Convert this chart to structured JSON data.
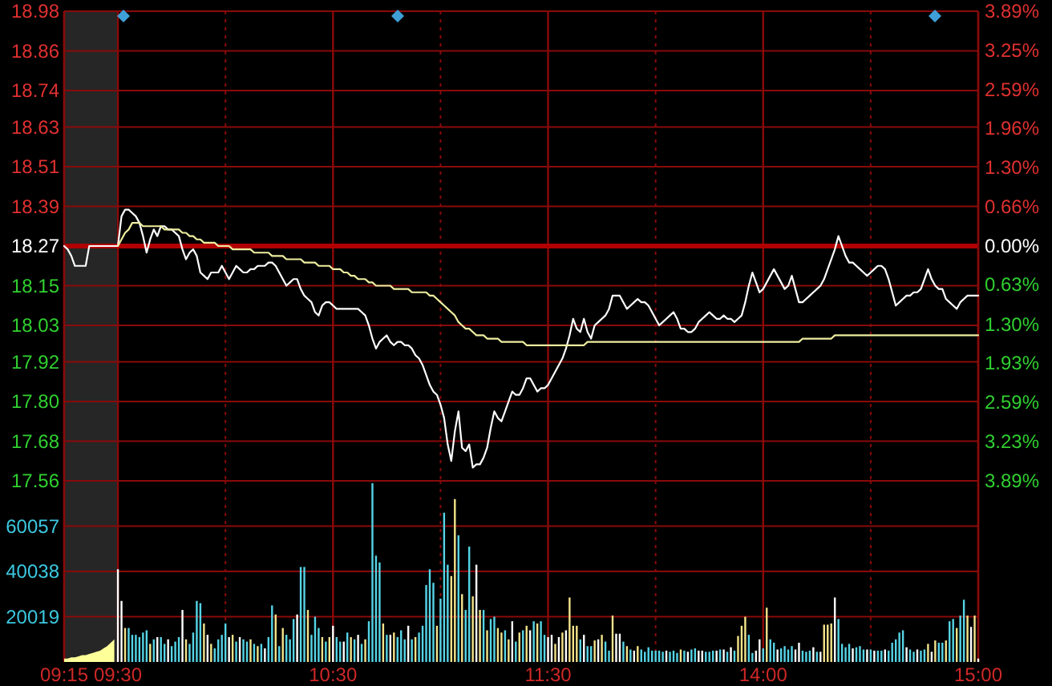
{
  "chart_data": [
    {
      "type": "line",
      "tick_labels": "y",
      "grid": true,
      "categories": [
        "09:15",
        null,
        null,
        null,
        null,
        null,
        null,
        null,
        null,
        null,
        null,
        null,
        null,
        null,
        null,
        "09:30",
        null,
        null,
        null,
        null,
        null,
        null,
        null,
        null,
        null,
        null,
        null,
        null,
        null,
        null,
        null,
        null,
        null,
        null,
        null,
        null,
        null,
        null,
        null,
        null,
        null,
        null,
        null,
        null,
        null,
        null,
        null,
        null,
        null,
        null,
        null,
        null,
        null,
        null,
        null,
        null,
        null,
        null,
        null,
        null,
        null,
        null,
        null,
        null,
        null,
        null,
        null,
        null,
        null,
        null,
        null,
        null,
        null,
        null,
        null,
        "10:30",
        null,
        null,
        null,
        null,
        null,
        null,
        null,
        null,
        null,
        null,
        null,
        null,
        null,
        null,
        null,
        null,
        null,
        null,
        null,
        null,
        null,
        null,
        null,
        null,
        null,
        null,
        null,
        null,
        null,
        null,
        null,
        null,
        null,
        null,
        null,
        null,
        null,
        null,
        null,
        null,
        null,
        null,
        null,
        null,
        null,
        null,
        null,
        null,
        null,
        null,
        null,
        null,
        null,
        null,
        null,
        null,
        null,
        null,
        null,
        "11:30",
        null,
        null,
        null,
        null,
        null,
        null,
        null,
        null,
        null,
        null,
        null,
        null,
        null,
        null,
        null,
        null,
        null,
        null,
        null,
        null,
        null,
        null,
        null,
        null,
        null,
        null,
        null,
        null,
        null,
        null,
        null,
        null,
        null,
        null,
        null,
        null,
        null,
        null,
        null,
        null,
        null,
        null,
        null,
        null,
        null,
        null,
        null,
        null,
        null,
        null,
        null,
        null,
        null,
        null,
        null,
        null,
        null,
        null,
        null,
        "14:00",
        null,
        null,
        null,
        null,
        null,
        null,
        null,
        null,
        null,
        null,
        null,
        null,
        null,
        null,
        null,
        null,
        null,
        null,
        null,
        null,
        null,
        null,
        null,
        null,
        null,
        null,
        null,
        null,
        null,
        null,
        null,
        null,
        null,
        null,
        null,
        null,
        null,
        null,
        null,
        null,
        null,
        null,
        null,
        null,
        null,
        null,
        null,
        null,
        null,
        null,
        null,
        null,
        null,
        null,
        null,
        null,
        null,
        null,
        null,
        "15:00"
      ],
      "ylim": [
        17.56,
        18.98
      ],
      "yticks": [
        18.98,
        18.86,
        18.74,
        18.63,
        18.51,
        18.39,
        18.27,
        18.15,
        18.03,
        17.92,
        {
          "value": 17.8,
          "label": "17.80"
        },
        17.68,
        17.56
      ],
      "y2lim": [
        -3.89,
        3.89
      ],
      "y2ticks": [
        {
          "value": 3.89,
          "label": "3.89%"
        },
        {
          "value": 3.25,
          "label": "3.25%"
        },
        {
          "value": 2.59,
          "label": "2.59%"
        },
        {
          "value": 1.96,
          "label": "1.96%"
        },
        {
          "value": 1.3,
          "label": "1.30%"
        },
        {
          "value": 0.66,
          "label": "0.66%"
        },
        {
          "value": 0,
          "label": "0.00%"
        },
        {
          "value": -0.63,
          "label": "0.63%"
        },
        {
          "value": -1.3,
          "label": "1.30%"
        },
        {
          "value": -1.93,
          "label": "1.93%"
        },
        {
          "value": -2.59,
          "label": "2.59%"
        },
        {
          "value": -3.23,
          "label": "3.23%"
        },
        {
          "value": -3.89,
          "label": "3.89%"
        }
      ],
      "bands": [
        {
          "axis": "x",
          "from": "09:15",
          "to": "09:30",
          "color": "#262626"
        }
      ],
      "ref_lines": [
        {
          "axis": "y",
          "value": 18.27,
          "color": "#b00000"
        }
      ],
      "series": [
        {
          "color": "#ffffff",
          "values": [
            18.27,
            18.26,
            18.24,
            18.21,
            18.21,
            18.21,
            18.21,
            18.27,
            18.27,
            18.27,
            18.27,
            18.27,
            18.27,
            18.27,
            18.27,
            18.27,
            18.36,
            18.38,
            18.38,
            18.37,
            18.36,
            18.34,
            18.3,
            18.25,
            18.29,
            18.32,
            18.3,
            18.33,
            18.33,
            18.32,
            18.32,
            18.31,
            18.3,
            18.26,
            18.23,
            18.25,
            18.26,
            18.24,
            18.19,
            18.18,
            18.17,
            18.19,
            18.19,
            18.19,
            18.21,
            18.19,
            18.17,
            18.19,
            18.21,
            18.2,
            18.19,
            18.19,
            18.2,
            18.2,
            18.21,
            18.21,
            18.21,
            18.22,
            18.22,
            18.21,
            18.19,
            18.17,
            18.15,
            18.16,
            18.17,
            18.17,
            18.14,
            18.12,
            18.11,
            18.1,
            18.07,
            18.06,
            18.09,
            18.1,
            18.1,
            18.09,
            18.08,
            18.08,
            18.08,
            18.08,
            18.08,
            18.08,
            18.08,
            18.07,
            18.06,
            18.03,
            17.99,
            17.96,
            17.98,
            17.99,
            18.0,
            17.98,
            17.97,
            17.98,
            17.98,
            17.97,
            17.97,
            17.96,
            17.94,
            17.93,
            17.91,
            17.88,
            17.85,
            17.83,
            17.82,
            17.79,
            17.75,
            17.67,
            17.62,
            17.71,
            17.77,
            17.66,
            17.65,
            17.67,
            17.6,
            17.61,
            17.61,
            17.63,
            17.66,
            17.72,
            17.77,
            17.75,
            17.74,
            17.77,
            17.8,
            17.83,
            17.82,
            17.82,
            17.84,
            17.87,
            17.87,
            17.85,
            17.83,
            17.84,
            17.84,
            17.85,
            17.87,
            17.89,
            17.91,
            17.93,
            17.96,
            18.0,
            18.05,
            18.02,
            18.01,
            18.05,
            18.01,
            17.99,
            18.03,
            18.04,
            18.05,
            18.06,
            18.08,
            18.12,
            18.12,
            18.12,
            18.1,
            18.08,
            18.09,
            18.1,
            18.11,
            18.1,
            18.1,
            18.09,
            18.07,
            18.05,
            18.03,
            18.04,
            18.05,
            18.06,
            18.07,
            18.05,
            18.02,
            18.02,
            18.01,
            18.01,
            18.02,
            18.04,
            18.05,
            18.06,
            18.07,
            18.06,
            18.05,
            18.05,
            18.06,
            18.05,
            18.05,
            18.04,
            18.05,
            18.06,
            18.1,
            18.15,
            18.19,
            18.16,
            18.13,
            18.14,
            18.16,
            18.18,
            18.2,
            18.18,
            18.16,
            18.14,
            18.15,
            18.18,
            18.14,
            18.1,
            18.1,
            18.11,
            18.12,
            18.13,
            18.14,
            18.15,
            18.17,
            18.2,
            18.23,
            18.26,
            18.3,
            18.27,
            18.24,
            18.22,
            18.22,
            18.21,
            18.2,
            18.19,
            18.18,
            18.19,
            18.2,
            18.21,
            18.21,
            18.2,
            18.17,
            18.13,
            18.09,
            18.1,
            18.11,
            18.12,
            18.12,
            18.13,
            18.13,
            18.14,
            18.17,
            18.2,
            18.17,
            18.15,
            18.14,
            18.14,
            18.11,
            18.1,
            18.09,
            18.08,
            18.1,
            18.11,
            18.12,
            18.12,
            18.12,
            18.12
          ]
        },
        {
          "color": "#eeeea0",
          "values": [
            null,
            null,
            null,
            null,
            null,
            null,
            null,
            null,
            null,
            null,
            null,
            null,
            null,
            null,
            null,
            18.27,
            18.29,
            18.31,
            18.32,
            18.34,
            18.34,
            18.34,
            18.33,
            18.33,
            18.33,
            18.33,
            18.33,
            18.33,
            18.32,
            18.32,
            18.32,
            18.32,
            18.32,
            18.31,
            18.31,
            18.3,
            18.3,
            18.29,
            18.29,
            18.28,
            18.28,
            18.28,
            18.28,
            18.27,
            18.27,
            18.27,
            18.27,
            18.26,
            18.26,
            18.26,
            18.26,
            18.26,
            18.26,
            18.25,
            18.25,
            18.25,
            18.25,
            18.25,
            18.24,
            18.24,
            18.24,
            18.24,
            18.23,
            18.23,
            18.23,
            18.23,
            18.23,
            18.22,
            18.22,
            18.22,
            18.22,
            18.21,
            18.21,
            18.21,
            18.21,
            18.2,
            18.2,
            18.2,
            18.19,
            18.19,
            18.18,
            18.18,
            18.17,
            18.17,
            18.17,
            18.16,
            18.16,
            18.15,
            18.15,
            18.15,
            18.15,
            18.15,
            18.14,
            18.14,
            18.14,
            18.14,
            18.14,
            18.13,
            18.13,
            18.13,
            18.13,
            18.13,
            18.12,
            18.12,
            18.11,
            18.1,
            18.09,
            18.08,
            18.07,
            18.06,
            18.04,
            18.03,
            18.02,
            18.02,
            18.01,
            18.0,
            18.0,
            18.0,
            17.99,
            17.99,
            17.99,
            17.99,
            17.98,
            17.98,
            17.98,
            17.98,
            17.98,
            17.98,
            17.98,
            17.97,
            17.97,
            17.97,
            17.97,
            17.97,
            17.97,
            17.97,
            17.97,
            17.97,
            17.97,
            17.97,
            17.97,
            17.97,
            17.97,
            17.97,
            17.97,
            17.97,
            17.98,
            17.98,
            17.98,
            17.98,
            17.98,
            17.98,
            17.98,
            17.98,
            17.98,
            17.98,
            17.98,
            17.98,
            17.98,
            17.98,
            17.98,
            17.98,
            17.98,
            17.98,
            17.98,
            17.98,
            17.98,
            17.98,
            17.98,
            17.98,
            17.98,
            17.98,
            17.98,
            17.98,
            17.98,
            17.98,
            17.98,
            17.98,
            17.98,
            17.98,
            17.98,
            17.98,
            17.98,
            17.98,
            17.98,
            17.98,
            17.98,
            17.98,
            17.98,
            17.98,
            17.98,
            17.98,
            17.98,
            17.98,
            17.98,
            17.98,
            17.98,
            17.98,
            17.98,
            17.98,
            17.98,
            17.98,
            17.98,
            17.98,
            17.98,
            17.98,
            17.99,
            17.99,
            17.99,
            17.99,
            17.99,
            17.99,
            17.99,
            17.99,
            17.99,
            18.0,
            18.0,
            18.0,
            18.0,
            18.0,
            18.0,
            18.0,
            18.0,
            18.0,
            18.0,
            18.0,
            18.0,
            18.0,
            18.0,
            18.0,
            18.0,
            18.0,
            18.0,
            18.0,
            18.0,
            18.0,
            18.0,
            18.0,
            18.0,
            18.0,
            18.0,
            18.0,
            18.0,
            18.0,
            18.0,
            18.0,
            18.0,
            18.0,
            18.0,
            18.0,
            18.0,
            18.0,
            18.0,
            18.0,
            18.0,
            18.0
          ]
        }
      ]
    },
    {
      "type": "bar",
      "grid": true,
      "categories": [
        "09:15",
        null,
        null,
        null,
        null,
        null,
        null,
        null,
        null,
        null,
        null,
        null,
        null,
        null,
        null,
        "09:30",
        null,
        null,
        null,
        null,
        null,
        null,
        null,
        null,
        null,
        null,
        null,
        null,
        null,
        null,
        null,
        null,
        null,
        null,
        null,
        null,
        null,
        null,
        null,
        null,
        null,
        null,
        null,
        null,
        null,
        null,
        null,
        null,
        null,
        null,
        null,
        null,
        null,
        null,
        null,
        null,
        null,
        null,
        null,
        null,
        null,
        null,
        null,
        null,
        null,
        null,
        null,
        null,
        null,
        null,
        null,
        null,
        null,
        null,
        null,
        "10:30",
        null,
        null,
        null,
        null,
        null,
        null,
        null,
        null,
        null,
        null,
        null,
        null,
        null,
        null,
        null,
        null,
        null,
        null,
        null,
        null,
        null,
        null,
        null,
        null,
        null,
        null,
        null,
        null,
        null,
        null,
        null,
        null,
        null,
        null,
        null,
        null,
        null,
        null,
        null,
        null,
        null,
        null,
        null,
        null,
        null,
        null,
        null,
        null,
        null,
        null,
        null,
        null,
        null,
        null,
        null,
        null,
        null,
        null,
        null,
        "11:30",
        null,
        null,
        null,
        null,
        null,
        null,
        null,
        null,
        null,
        null,
        null,
        null,
        null,
        null,
        null,
        null,
        null,
        null,
        null,
        null,
        null,
        null,
        null,
        null,
        null,
        null,
        null,
        null,
        null,
        null,
        null,
        null,
        null,
        null,
        null,
        null,
        null,
        null,
        null,
        null,
        null,
        null,
        null,
        null,
        null,
        null,
        null,
        null,
        null,
        null,
        null,
        null,
        null,
        null,
        null,
        null,
        null,
        null,
        null,
        "14:00",
        null,
        null,
        null,
        null,
        null,
        null,
        null,
        null,
        null,
        null,
        null,
        null,
        null,
        null,
        null,
        null,
        null,
        null,
        null,
        null,
        null,
        null,
        null,
        null,
        null,
        null,
        null,
        null,
        null,
        null,
        null,
        null,
        null,
        null,
        null,
        null,
        null,
        null,
        null,
        null,
        null,
        null,
        null,
        null,
        null,
        null,
        null,
        null,
        null,
        null,
        null,
        null,
        null,
        null,
        null,
        null,
        null,
        null,
        null,
        "15:00"
      ],
      "ylim": [
        0,
        80076
      ],
      "yticks": [
        20019,
        40038,
        60057,
        {
          "value": 80076,
          "label": null
        }
      ],
      "bands": [
        {
          "axis": "x",
          "from": "09:15",
          "to": "09:30",
          "color": "#262626"
        }
      ],
      "series": [
        {
          "type": "area",
          "color": "#ffff99",
          "values": [
            1500,
            1500,
            2000,
            2000,
            2500,
            3000,
            3000,
            3500,
            4000,
            4500,
            5000,
            6000,
            7000,
            8500,
            10000,
            null,
            null,
            null,
            null,
            null,
            null,
            null,
            null,
            null,
            null,
            null,
            null,
            null,
            null,
            null,
            null,
            null,
            null,
            null,
            null,
            null,
            null,
            null,
            null,
            null,
            null,
            null,
            null,
            null,
            null,
            null,
            null,
            null,
            null,
            null,
            null,
            null,
            null,
            null,
            null,
            null,
            null,
            null,
            null,
            null,
            null,
            null,
            null,
            null,
            null,
            null,
            null,
            null,
            null,
            null,
            null,
            null,
            null,
            null,
            null,
            null,
            null,
            null,
            null,
            null,
            null,
            null,
            null,
            null,
            null,
            null,
            null,
            null,
            null,
            null,
            null,
            null,
            null,
            null,
            null,
            null,
            null,
            null,
            null,
            null,
            null,
            null,
            null,
            null,
            null,
            null,
            null,
            null,
            null,
            null,
            null,
            null,
            null,
            null,
            null,
            null,
            null,
            null,
            null,
            null,
            null,
            null,
            null,
            null,
            null,
            null,
            null,
            null,
            null,
            null,
            null,
            null,
            null,
            null,
            null,
            null,
            null,
            null,
            null,
            null,
            null,
            null,
            null,
            null,
            null,
            null,
            null,
            null,
            null,
            null,
            null,
            null,
            null,
            null,
            null,
            null,
            null,
            null,
            null,
            null,
            null,
            null,
            null,
            null,
            null,
            null,
            null,
            null,
            null,
            null,
            null,
            null,
            null,
            null,
            null,
            null,
            null,
            null,
            null,
            null,
            null,
            null,
            null,
            null,
            null,
            null,
            null,
            null,
            null,
            null,
            null,
            null,
            null,
            null,
            null,
            null,
            null,
            null,
            null,
            null,
            null,
            null,
            null,
            null,
            null,
            null,
            null,
            null,
            null,
            null,
            null,
            null,
            null,
            null,
            null,
            null,
            null,
            null,
            null,
            null,
            null,
            null,
            null,
            null,
            null,
            null,
            null,
            null,
            null,
            null,
            null,
            null,
            null,
            null,
            null,
            null,
            null,
            null,
            null,
            null,
            null,
            null,
            null,
            null,
            null,
            null,
            null,
            null,
            null,
            null,
            null,
            null,
            null,
            null,
            null,
            null
          ]
        },
        {
          "values": [
            null,
            null,
            null,
            null,
            null,
            null,
            null,
            null,
            null,
            null,
            null,
            null,
            null,
            null,
            null,
            41000,
            27000,
            15000,
            15000,
            12000,
            12000,
            11000,
            13000,
            14000,
            8000,
            10000,
            11000,
            11000,
            8000,
            10000,
            7000,
            9000,
            11000,
            23000,
            10000,
            8000,
            13000,
            27000,
            26000,
            17000,
            12000,
            8000,
            6000,
            10000,
            12000,
            17000,
            11000,
            12000,
            9000,
            11000,
            10000,
            9000,
            10000,
            8000,
            7000,
            8000,
            6000,
            11000,
            25000,
            21000,
            7000,
            15000,
            12000,
            10000,
            19000,
            21000,
            42000,
            42000,
            23000,
            12000,
            20000,
            15000,
            11000,
            9000,
            11000,
            16000,
            11000,
            9000,
            9000,
            13000,
            11000,
            10000,
            12000,
            8000,
            10000,
            18000,
            79000,
            47000,
            44000,
            17000,
            12000,
            12000,
            13000,
            11000,
            14000,
            10000,
            16000,
            10000,
            11000,
            13000,
            16000,
            34000,
            41000,
            35000,
            16000,
            28000,
            66000,
            43000,
            38000,
            72000,
            56000,
            30000,
            23000,
            51000,
            29000,
            43000,
            23000,
            23000,
            14000,
            19000,
            20000,
            15000,
            13000,
            14000,
            10000,
            18000,
            9000,
            13000,
            14000,
            16000,
            14000,
            18000,
            17000,
            18000,
            12000,
            11000,
            12000,
            8000,
            11000,
            13000,
            14000,
            28500,
            16000,
            16000,
            10000,
            12000,
            7000,
            7000,
            9500,
            10000,
            12000,
            9000,
            5000,
            20500,
            12500,
            12500,
            9000,
            7000,
            5500,
            5000,
            7000,
            5500,
            4500,
            6500,
            5000,
            5000,
            5000,
            4500,
            5000,
            4500,
            5000,
            4000,
            5500,
            5000,
            4500,
            5500,
            6000,
            5000,
            5000,
            4500,
            4500,
            5000,
            5000,
            5500,
            5500,
            4500,
            6500,
            5000,
            11500,
            16000,
            20000,
            12000,
            4000,
            5000,
            10000,
            6000,
            24000,
            10000,
            8500,
            5500,
            6000,
            7000,
            5500,
            7000,
            5500,
            8500,
            5000,
            4500,
            5000,
            6500,
            4500,
            4500,
            16500,
            16500,
            17000,
            28500,
            19000,
            8000,
            6500,
            8000,
            6000,
            6500,
            7000,
            5500,
            5500,
            5500,
            5000,
            5000,
            5000,
            5500,
            5000,
            8500,
            10000,
            13000,
            14000,
            6500,
            5500,
            4500,
            5500,
            5000,
            5500,
            8000,
            4500,
            9500,
            8500,
            8500,
            9500,
            18000,
            19000,
            15000,
            20500,
            27500,
            20500,
            15500,
            20500,
            1500
          ],
          "colors": [
            null,
            null,
            null,
            null,
            null,
            null,
            null,
            null,
            null,
            null,
            null,
            null,
            null,
            null,
            null,
            "#ffffff",
            "#ffffff",
            "#f3e38a",
            "#55d4e6",
            "#55d4e6",
            "#55d4e6",
            "#55d4e6",
            "#55d4e6",
            "#55d4e6",
            "#f3e38a",
            "#55d4e6",
            "#ffffff",
            "#55d4e6",
            "#55d4e6",
            "#ffffff",
            "#55d4e6",
            "#55d4e6",
            "#55d4e6",
            "#ffffff",
            "#f3e38a",
            "#55d4e6",
            "#55d4e6",
            "#55d4e6",
            "#55d4e6",
            "#f3e38a",
            "#ffffff",
            "#f3e38a",
            "#55d4e6",
            "#55d4e6",
            "#55d4e6",
            "#55d4e6",
            "#ffffff",
            "#f3e38a",
            "#55d4e6",
            "#ffffff",
            "#55d4e6",
            "#55d4e6",
            "#f3e38a",
            "#55d4e6",
            "#f3e38a",
            "#55d4e6",
            "#ffffff",
            "#55d4e6",
            "#55d4e6",
            "#f3e38a",
            "#55d4e6",
            "#f3e38a",
            "#55d4e6",
            "#55d4e6",
            "#55d4e6",
            "#ffffff",
            "#55d4e6",
            "#55d4e6",
            "#f3e38a",
            "#55d4e6",
            "#55d4e6",
            "#55d4e6",
            "#f3e38a",
            "#55d4e6",
            "#f3e38a",
            "#ffffff",
            "#55d4e6",
            "#55d4e6",
            "#ffffff",
            "#55d4e6",
            "#f3e38a",
            "#55d4e6",
            "#ffffff",
            "#55d4e6",
            "#f3e38a",
            "#55d4e6",
            "#55d4e6",
            "#55d4e6",
            "#55d4e6",
            "#f3e38a",
            "#55d4e6",
            "#ffffff",
            "#f3e38a",
            "#55d4e6",
            "#55d4e6",
            "#55d4e6",
            "#ffffff",
            "#55d4e6",
            "#f3e38a",
            "#55d4e6",
            "#55d4e6",
            "#55d4e6",
            "#55d4e6",
            "#55d4e6",
            "#f3e38a",
            "#55d4e6",
            "#55d4e6",
            "#55d4e6",
            "#f3e38a",
            "#f3e38a",
            "#55d4e6",
            "#f3e38a",
            "#55d4e6",
            "#55d4e6",
            "#f3e38a",
            "#ffffff",
            "#f3e38a",
            "#55d4e6",
            "#f3e38a",
            "#55d4e6",
            "#55d4e6",
            "#f3e38a",
            "#f3e38a",
            "#55d4e6",
            "#f3e38a",
            "#ffffff",
            "#55d4e6",
            "#f3e38a",
            "#55d4e6",
            "#f3e38a",
            "#ffffff",
            "#55d4e6",
            "#f3e38a",
            "#55d4e6",
            "#55d4e6",
            "#ffffff",
            "#ffffff",
            "#f3e38a",
            "#ffffff",
            "#f3e38a",
            "#ffffff",
            "#f3e38a",
            "#f3e38a",
            "#f3e38a",
            "#55d4e6",
            "#ffffff",
            "#55d4e6",
            "#55d4e6",
            "#f3e38a",
            "#ffffff",
            "#f3e38a",
            "#55d4e6",
            "#55d4e6",
            "#f3e38a",
            "#ffffff",
            "#ffffff",
            "#55d4e6",
            "#f3e38a",
            "#55d4e6",
            "#ffffff",
            "#f3e38a",
            "#55d4e6",
            "#55d4e6",
            "#55d4e6",
            "#55d4e6",
            "#55d4e6",
            "#55d4e6",
            "#55d4e6",
            "#ffffff",
            "#55d4e6",
            "#55d4e6",
            "#55d4e6",
            "#f3e38a",
            "#55d4e6",
            "#ffffff",
            "#55d4e6",
            "#55d4e6",
            "#ffffff",
            "#ffffff",
            "#55d4e6",
            "#55d4e6",
            "#55d4e6",
            "#ffffff",
            "#55d4e6",
            "#ffffff",
            "#55d4e6",
            "#ffffff",
            "#55d4e6",
            "#f3e38a",
            "#f3e38a",
            "#f3e38a",
            "#55d4e6",
            "#55d4e6",
            "#ffffff",
            "#ffffff",
            "#55d4e6",
            "#f3e38a",
            "#55d4e6",
            "#55d4e6",
            "#ffffff",
            "#55d4e6",
            "#55d4e6",
            "#55d4e6",
            "#55d4e6",
            "#ffffff",
            "#ffffff",
            "#55d4e6",
            "#55d4e6",
            "#55d4e6",
            "#ffffff",
            "#55d4e6",
            "#ffffff",
            "#f3e38a",
            "#f3e38a",
            "#f3e38a",
            "#ffffff",
            "#55d4e6",
            "#55d4e6",
            "#55d4e6",
            "#55d4e6",
            "#ffffff",
            "#55d4e6",
            "#55d4e6",
            "#55d4e6",
            "#ffffff",
            "#55d4e6",
            "#ffffff",
            "#55d4e6",
            "#55d4e6",
            "#ffffff",
            "#55d4e6",
            "#55d4e6",
            "#55d4e6",
            "#55d4e6",
            "#55d4e6",
            "#ffffff",
            "#55d4e6",
            "#55d4e6",
            "#ffffff",
            "#55d4e6",
            "#55d4e6",
            "#f3e38a",
            "#ffffff",
            "#f3e38a",
            "#55d4e6",
            "#55d4e6",
            "#f3e38a",
            "#55d4e6",
            "#55d4e6",
            "#f3e38a",
            "#55d4e6",
            "#55d4e6",
            "#f3e38a",
            "#ffffff",
            "#f3e38a",
            "#ffffff"
          ]
        }
      ]
    }
  ]
}
